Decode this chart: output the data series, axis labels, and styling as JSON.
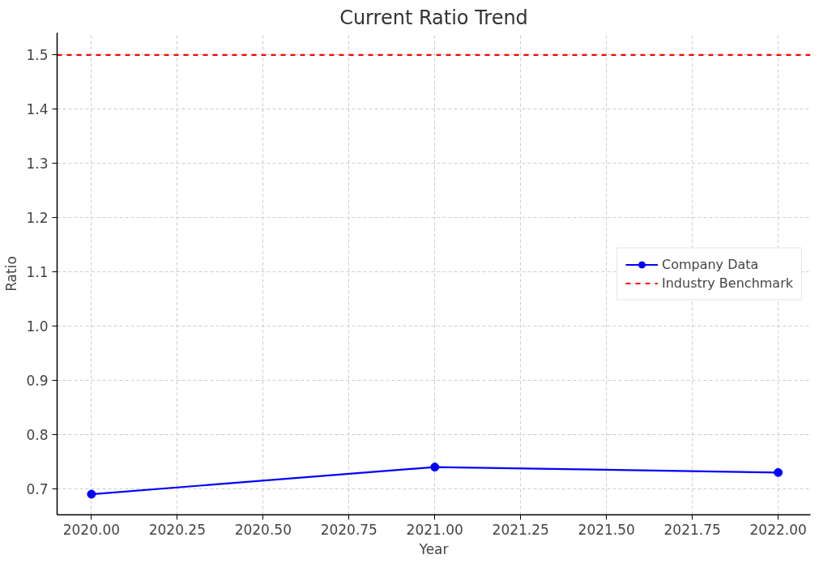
{
  "chart_data": {
    "type": "line",
    "title": "Current Ratio Trend",
    "xlabel": "Year",
    "ylabel": "Ratio",
    "x": [
      2020,
      2021,
      2022
    ],
    "series": [
      {
        "name": "Company Data",
        "color": "#0000ff",
        "values": [
          0.69,
          0.74,
          0.73
        ]
      }
    ],
    "ref_lines": [
      {
        "axis": "y",
        "value": 1.5,
        "label": "Industry Benchmark",
        "color": "#ff0000",
        "line_style": "dashed"
      }
    ],
    "xlim": [
      2019.9,
      2022.094
    ],
    "ylim": [
      0.652,
      1.541
    ],
    "xticks": [
      {
        "value": 2020,
        "label": "2020.00"
      },
      {
        "value": 2020.25,
        "label": "2020.25"
      },
      {
        "value": 2020.5,
        "label": "2020.50"
      },
      {
        "value": 2020.75,
        "label": "2020.75"
      },
      {
        "value": 2021,
        "label": "2021.00"
      },
      {
        "value": 2021.25,
        "label": "2021.25"
      },
      {
        "value": 2021.5,
        "label": "2021.50"
      },
      {
        "value": 2021.75,
        "label": "2021.75"
      },
      {
        "value": 2022,
        "label": "2022.00"
      }
    ],
    "yticks": [
      0.7,
      0.8,
      0.9,
      {
        "value": 1.0,
        "label": "1.0"
      },
      1.1,
      1.2,
      1.3,
      1.4,
      1.5
    ],
    "grid": true,
    "legend": "right",
    "marker": "circle",
    "line_style": "solid"
  }
}
